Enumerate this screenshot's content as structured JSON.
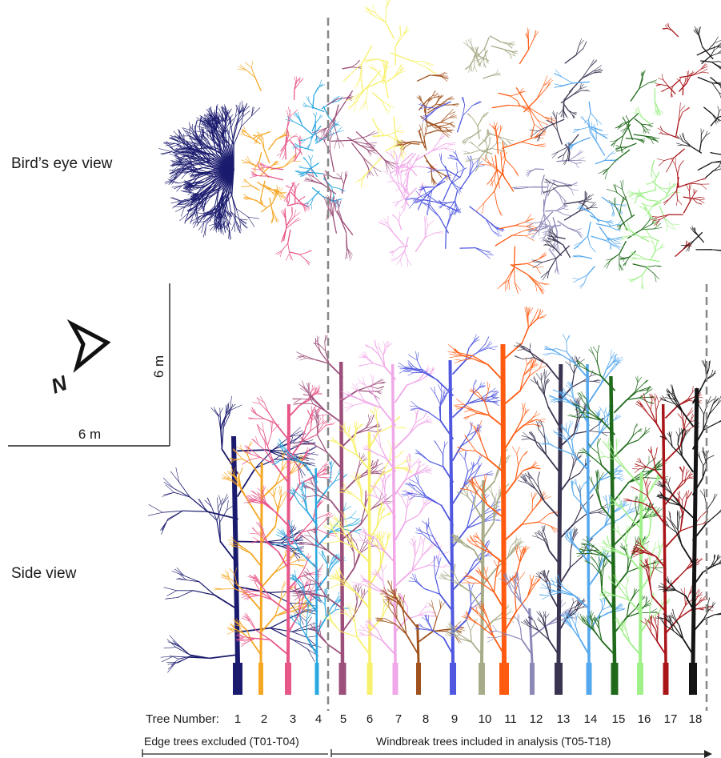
{
  "views": {
    "birds_eye": "Bird’s eye view",
    "side": "Side view"
  },
  "scale": {
    "horizontal": "6 m",
    "vertical": "6 m"
  },
  "north": {
    "label": "N",
    "icon": "north-arrow-icon"
  },
  "tree_row": {
    "title": "Tree Number:",
    "numbers": [
      "1",
      "2",
      "3",
      "4",
      "5",
      "6",
      "7",
      "8",
      "9",
      "10",
      "11",
      "12",
      "13",
      "14",
      "15",
      "16",
      "17",
      "18"
    ]
  },
  "groups": {
    "edge": "Edge trees excluded (T01-T04)",
    "windbreak": "Windbreak trees included in analysis (T05-T18)"
  },
  "tree_colors": [
    "#1a1a6e",
    "#f5a623",
    "#e8578a",
    "#2aa8e0",
    "#9c4f7a",
    "#f7f06a",
    "#f0a8e8",
    "#a0521e",
    "#5058e0",
    "#a8ab88",
    "#ff5a10",
    "#8c88b8",
    "#3a3450",
    "#55a8ee",
    "#1f6a1a",
    "#a0f08a",
    "#a81418",
    "#141414"
  ]
}
